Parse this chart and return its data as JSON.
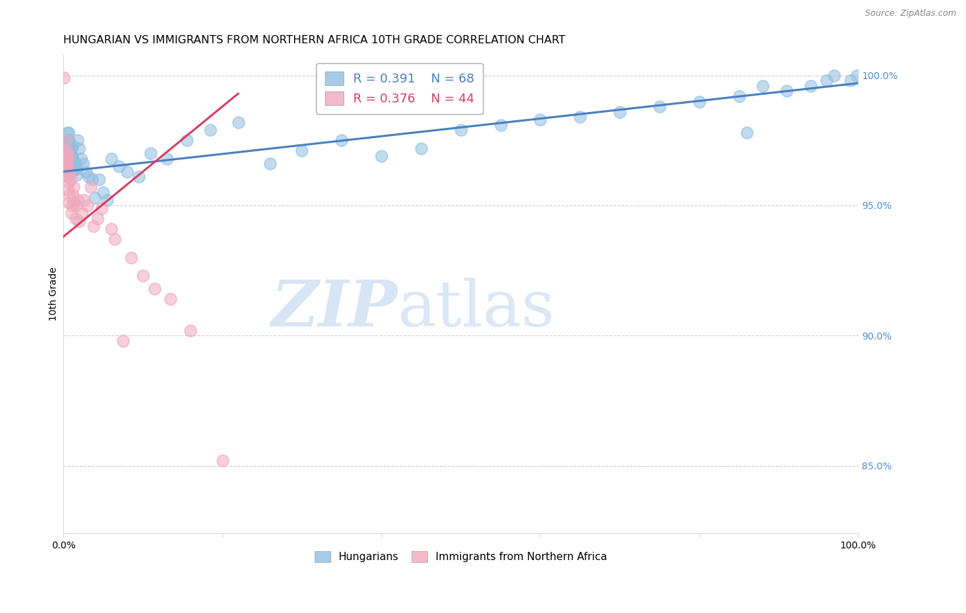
{
  "title": "HUNGARIAN VS IMMIGRANTS FROM NORTHERN AFRICA 10TH GRADE CORRELATION CHART",
  "source": "Source: ZipAtlas.com",
  "ylabel": "10th Grade",
  "right_ytick_labels": [
    "100.0%",
    "95.0%",
    "90.0%",
    "85.0%"
  ],
  "right_ytick_values": [
    1.0,
    0.95,
    0.9,
    0.85
  ],
  "xlim": [
    0.0,
    1.0
  ],
  "ylim": [
    0.824,
    1.008
  ],
  "blue_R": 0.391,
  "blue_N": 68,
  "pink_R": 0.376,
  "pink_N": 44,
  "legend_blue_label": "Hungarians",
  "legend_pink_label": "Immigrants from Northern Africa",
  "title_fontsize": 11.5,
  "source_fontsize": 9,
  "ylabel_fontsize": 10,
  "watermark_text": "ZIPatlas",
  "watermark_color": "#ccdff5",
  "grid_color": "#cccccc",
  "blue_color": "#90bfe0",
  "pink_color": "#f0a8be",
  "blue_line_color": "#4a7fc0",
  "pink_line_color": "#d44060",
  "right_axis_color": "#5090d0",
  "blue_scatter_x": [
    0.003,
    0.004,
    0.004,
    0.005,
    0.005,
    0.005,
    0.006,
    0.006,
    0.006,
    0.007,
    0.007,
    0.007,
    0.007,
    0.008,
    0.008,
    0.009,
    0.009,
    0.01,
    0.01,
    0.011,
    0.012,
    0.012,
    0.013,
    0.014,
    0.015,
    0.016,
    0.017,
    0.018,
    0.02,
    0.022,
    0.025,
    0.028,
    0.032,
    0.036,
    0.04,
    0.045,
    0.05,
    0.055,
    0.06,
    0.07,
    0.08,
    0.095,
    0.11,
    0.13,
    0.155,
    0.185,
    0.22,
    0.26,
    0.3,
    0.35,
    0.4,
    0.45,
    0.5,
    0.55,
    0.6,
    0.65,
    0.7,
    0.75,
    0.8,
    0.85,
    0.86,
    0.88,
    0.91,
    0.94,
    0.96,
    0.97,
    0.99,
    0.998
  ],
  "blue_scatter_y": [
    0.975,
    0.971,
    0.975,
    0.972,
    0.975,
    0.978,
    0.972,
    0.968,
    0.975,
    0.973,
    0.969,
    0.975,
    0.978,
    0.971,
    0.966,
    0.969,
    0.964,
    0.963,
    0.972,
    0.969,
    0.968,
    0.973,
    0.966,
    0.964,
    0.966,
    0.964,
    0.962,
    0.975,
    0.972,
    0.968,
    0.966,
    0.963,
    0.961,
    0.96,
    0.953,
    0.96,
    0.955,
    0.952,
    0.968,
    0.965,
    0.963,
    0.961,
    0.97,
    0.968,
    0.975,
    0.979,
    0.982,
    0.966,
    0.971,
    0.975,
    0.969,
    0.972,
    0.979,
    0.981,
    0.983,
    0.984,
    0.986,
    0.988,
    0.99,
    0.992,
    0.978,
    0.996,
    0.994,
    0.996,
    0.998,
    1.0,
    0.998,
    1.0
  ],
  "pink_scatter_x": [
    0.001,
    0.002,
    0.002,
    0.003,
    0.003,
    0.003,
    0.004,
    0.004,
    0.004,
    0.005,
    0.005,
    0.005,
    0.006,
    0.006,
    0.007,
    0.007,
    0.008,
    0.008,
    0.009,
    0.01,
    0.011,
    0.012,
    0.013,
    0.014,
    0.015,
    0.016,
    0.018,
    0.02,
    0.023,
    0.026,
    0.03,
    0.034,
    0.038,
    0.043,
    0.048,
    0.06,
    0.065,
    0.075,
    0.085,
    0.1,
    0.115,
    0.135,
    0.16,
    0.2
  ],
  "pink_scatter_y": [
    0.999,
    0.963,
    0.97,
    0.975,
    0.971,
    0.966,
    0.968,
    0.965,
    0.97,
    0.963,
    0.961,
    0.966,
    0.969,
    0.956,
    0.959,
    0.951,
    0.954,
    0.962,
    0.96,
    0.947,
    0.95,
    0.954,
    0.957,
    0.951,
    0.945,
    0.95,
    0.952,
    0.944,
    0.947,
    0.952,
    0.95,
    0.957,
    0.942,
    0.945,
    0.949,
    0.941,
    0.937,
    0.898,
    0.93,
    0.923,
    0.918,
    0.914,
    0.902,
    0.852
  ],
  "blue_trend_x": [
    0.0,
    1.0
  ],
  "blue_trend_y": [
    0.963,
    0.997
  ],
  "pink_trend_x": [
    0.0,
    0.22
  ],
  "pink_trend_y": [
    0.938,
    0.993
  ]
}
